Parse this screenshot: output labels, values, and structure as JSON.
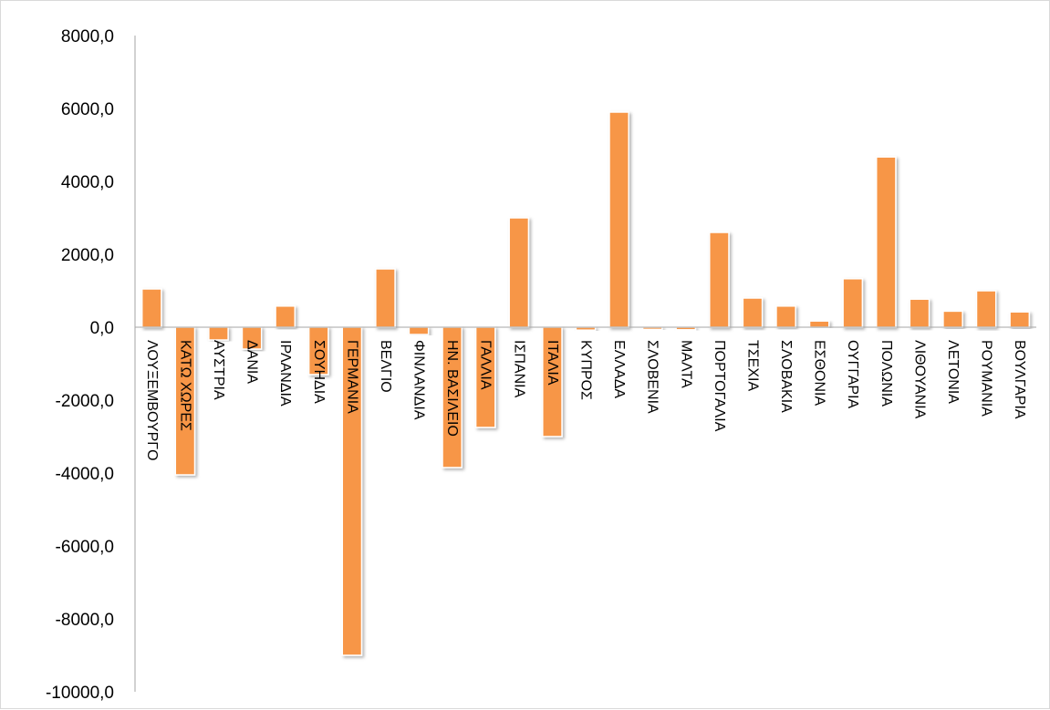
{
  "chart_data": {
    "type": "bar",
    "title": "",
    "xlabel": "",
    "ylabel": "",
    "ylim": [
      -10000,
      8000
    ],
    "yticks": [
      8000,
      6000,
      4000,
      2000,
      0,
      -2000,
      -4000,
      -6000,
      -8000,
      -10000
    ],
    "ytick_labels": [
      "8000,0",
      "6000,0",
      "4000,0",
      "2000,0",
      "0,0",
      "-2000,0",
      "-4000,0",
      "-6000,0",
      "-8000,0",
      "-10000,0"
    ],
    "grid": false,
    "categories": [
      "ΛΟΥΞΕΜΒΟΥΡΓΟ",
      "ΚΑΤΩ ΧΩΡΕΣ",
      "ΑΥΣΤΡΙΑ",
      "ΔΑΝΙΑ",
      "ΙΡΛΑΝΔΙΑ",
      "ΣΟΥΗΔΙΑ",
      "ΓΕΡΜΑΝΙΑ",
      "ΒΕΛΓΙΟ",
      "ΦΙΝΛΑΝΔΙΑ",
      "ΗΝ. ΒΑΣΙΛΕΙΟ",
      "ΓΑΛΛΙΑ",
      "ΙΣΠΑΝΙΑ",
      "ΙΤΑΛΙΑ",
      "ΚΥΠΡΟΣ",
      "ΕΛΛΑΔΑ",
      "ΣΛΟΒΕΝΙΑ",
      "ΜΑΛΤΑ",
      "ΠΟΡΤΟΓΑΛΙΑ",
      "ΤΣΕΧΙΑ",
      "ΣΛΟΒΑΚΙΑ",
      "ΕΣΘΟΝΙΑ",
      "ΟΥΓΓΑΡΙΑ",
      "ΠΟΛΩΝΙΑ",
      "ΛΙΘΟΥΑΝΙΑ",
      "ΛΕΤΟΝΙΑ",
      "ΡΟΥΜΑΝΙΑ",
      "ΒΟΥΛΓΑΡΙΑ"
    ],
    "values": [
      1050,
      -4050,
      -350,
      -600,
      580,
      -1300,
      -9000,
      1600,
      -200,
      -3850,
      -2750,
      3000,
      -3000,
      -80,
      5900,
      -60,
      -70,
      2600,
      800,
      580,
      170,
      1330,
      4670,
      770,
      440,
      1000,
      420
    ],
    "bar_color": "#f79646"
  }
}
